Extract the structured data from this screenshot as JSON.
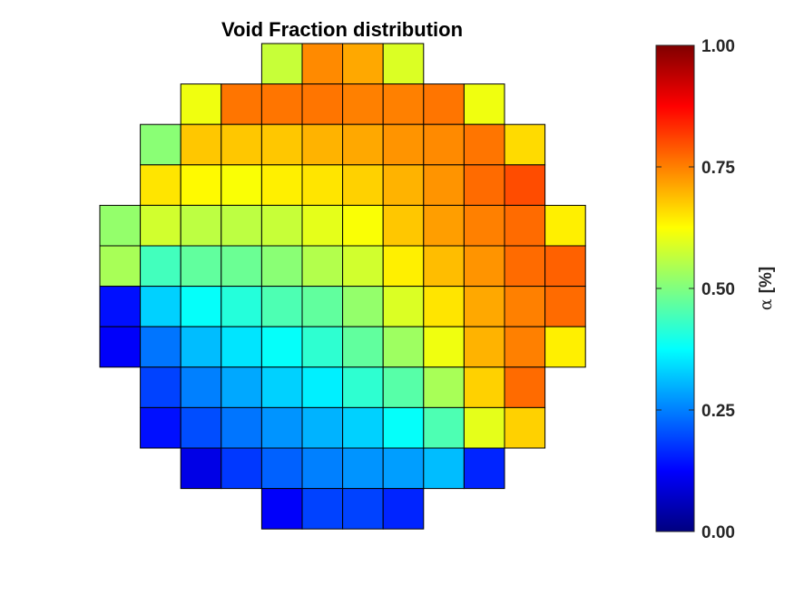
{
  "chart_data": {
    "type": "heatmap",
    "title": "Void Fraction distribution",
    "colormap": "jet",
    "clim": [
      0,
      1
    ],
    "colorbar": {
      "ticks": [
        "0.00",
        "0.25",
        "0.50",
        "0.75",
        "1.00"
      ],
      "tick_values": [
        0,
        0.25,
        0.5,
        0.75,
        1.0
      ],
      "label_symbol": "α",
      "label_unit": "[%]",
      "location": "right"
    },
    "grid_columns": 12,
    "grid_rows": 12,
    "rows": [
      {
        "start_col": 4,
        "values": [
          0.57,
          0.74,
          0.71,
          0.59
        ]
      },
      {
        "start_col": 2,
        "values": [
          0.61,
          0.76,
          0.76,
          0.76,
          0.75,
          0.75,
          0.76,
          0.61
        ]
      },
      {
        "start_col": 1,
        "values": [
          0.51,
          0.68,
          0.68,
          0.68,
          0.7,
          0.71,
          0.73,
          0.74,
          0.76,
          0.66
        ]
      },
      {
        "start_col": 1,
        "values": [
          0.65,
          0.63,
          0.62,
          0.64,
          0.65,
          0.67,
          0.7,
          0.73,
          0.77,
          0.8
        ]
      },
      {
        "start_col": 0,
        "values": [
          0.52,
          0.58,
          0.56,
          0.56,
          0.57,
          0.6,
          0.62,
          0.68,
          0.72,
          0.75,
          0.77,
          0.64
        ]
      },
      {
        "start_col": 0,
        "values": [
          0.54,
          0.44,
          0.47,
          0.48,
          0.51,
          0.55,
          0.58,
          0.64,
          0.69,
          0.73,
          0.77,
          0.78
        ]
      },
      {
        "start_col": 0,
        "values": [
          0.14,
          0.33,
          0.38,
          0.41,
          0.45,
          0.47,
          0.52,
          0.59,
          0.65,
          0.71,
          0.75,
          0.77
        ]
      },
      {
        "start_col": 0,
        "values": [
          0.12,
          0.24,
          0.31,
          0.35,
          0.38,
          0.42,
          0.47,
          0.53,
          0.61,
          0.7,
          0.75,
          0.64
        ]
      },
      {
        "start_col": 1,
        "values": [
          0.19,
          0.25,
          0.29,
          0.33,
          0.36,
          0.42,
          0.46,
          0.54,
          0.67,
          0.77
        ]
      },
      {
        "start_col": 1,
        "values": [
          0.14,
          0.2,
          0.24,
          0.27,
          0.3,
          0.33,
          0.38,
          0.45,
          0.6,
          0.67
        ]
      },
      {
        "start_col": 2,
        "values": [
          0.1,
          0.18,
          0.22,
          0.25,
          0.27,
          0.28,
          0.31,
          0.16
        ]
      },
      {
        "start_col": 4,
        "values": [
          0.12,
          0.19,
          0.19,
          0.16
        ]
      }
    ]
  }
}
